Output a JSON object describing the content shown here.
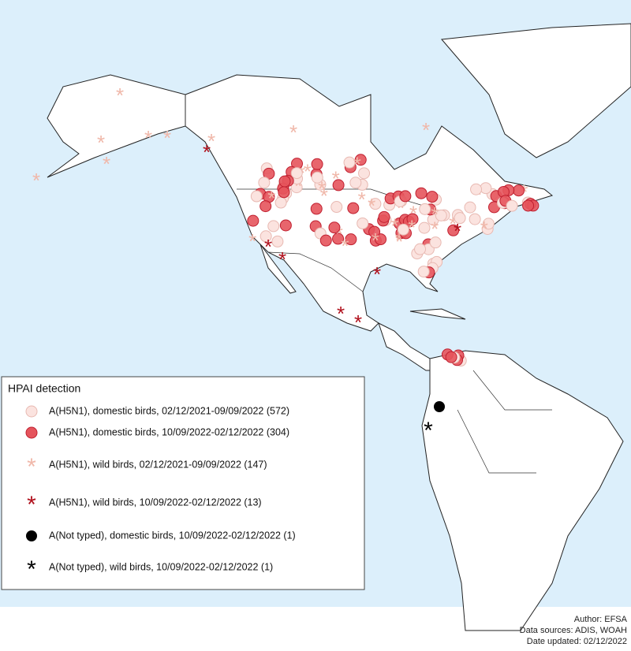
{
  "legend": {
    "title": "HPAI detection",
    "items": [
      {
        "label": "A(H5N1), domestic birds, 02/12/2021-09/09/2022 (572)"
      },
      {
        "label": "A(H5N1), domestic birds, 10/09/2022-02/12/2022 (304)"
      },
      {
        "label": "A(H5N1), wild birds, 02/12/2021-09/09/2022 (147)"
      },
      {
        "label": "A(H5N1), wild birds, 10/09/2022-02/12/2022 (13)"
      },
      {
        "label": "A(Not typed), domestic birds, 10/09/2022-02/12/2022 (1)"
      },
      {
        "label": "A(Not typed), wild birds, 10/09/2022-02/12/2022 (1)"
      }
    ]
  },
  "credits": [
    "Author: EFSA",
    "Data sources: ADIS, WOAH",
    "Date updated: 02/12/2022"
  ]
}
